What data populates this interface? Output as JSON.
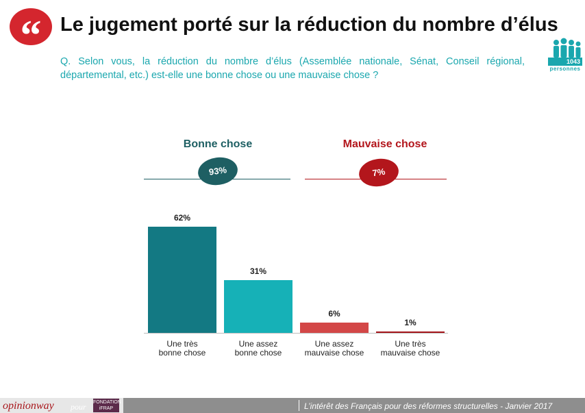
{
  "header": {
    "quote_glyph": "“",
    "title": "Le jugement porté sur la réduction du nombre d’élus",
    "question": "Q. Selon vous, la réduction du nombre d’élus (Assemblée nationale, Sénat, Conseil régional, départemental, etc.) est-elle une bonne chose ou une mauvaise chose ?"
  },
  "sample": {
    "count": "1043",
    "unit": "personnes",
    "icon": "people-icon"
  },
  "colors": {
    "dark_teal": "#137983",
    "light_teal": "#16b1b7",
    "red": "#d34747",
    "dark_red": "#a4141a",
    "question_teal": "#1aa7ae"
  },
  "chart_data": {
    "type": "bar",
    "groups": [
      {
        "label": "Bonne chose",
        "total": "93%",
        "color": "#1e5f63"
      },
      {
        "label": "Mauvaise chose",
        "total": "7%",
        "color": "#b3161c"
      }
    ],
    "categories": [
      "Une très\nbonne chose",
      "Une assez\nbonne chose",
      "Une assez\nmauvaise chose",
      "Une très\nmauvaise chose"
    ],
    "values": [
      62,
      31,
      6,
      1
    ],
    "value_labels": [
      "62%",
      "31%",
      "6%",
      "1%"
    ],
    "ylim": [
      0,
      100
    ],
    "colors": [
      "#137983",
      "#16b1b7",
      "#d34747",
      "#a4141a"
    ]
  },
  "footer": {
    "brand": "opinionway",
    "pour": "pour",
    "logo_text": "FONDATION iFRAP",
    "caption": "L’intérêt des Français pour des réformes structurelles - Janvier 2017"
  }
}
